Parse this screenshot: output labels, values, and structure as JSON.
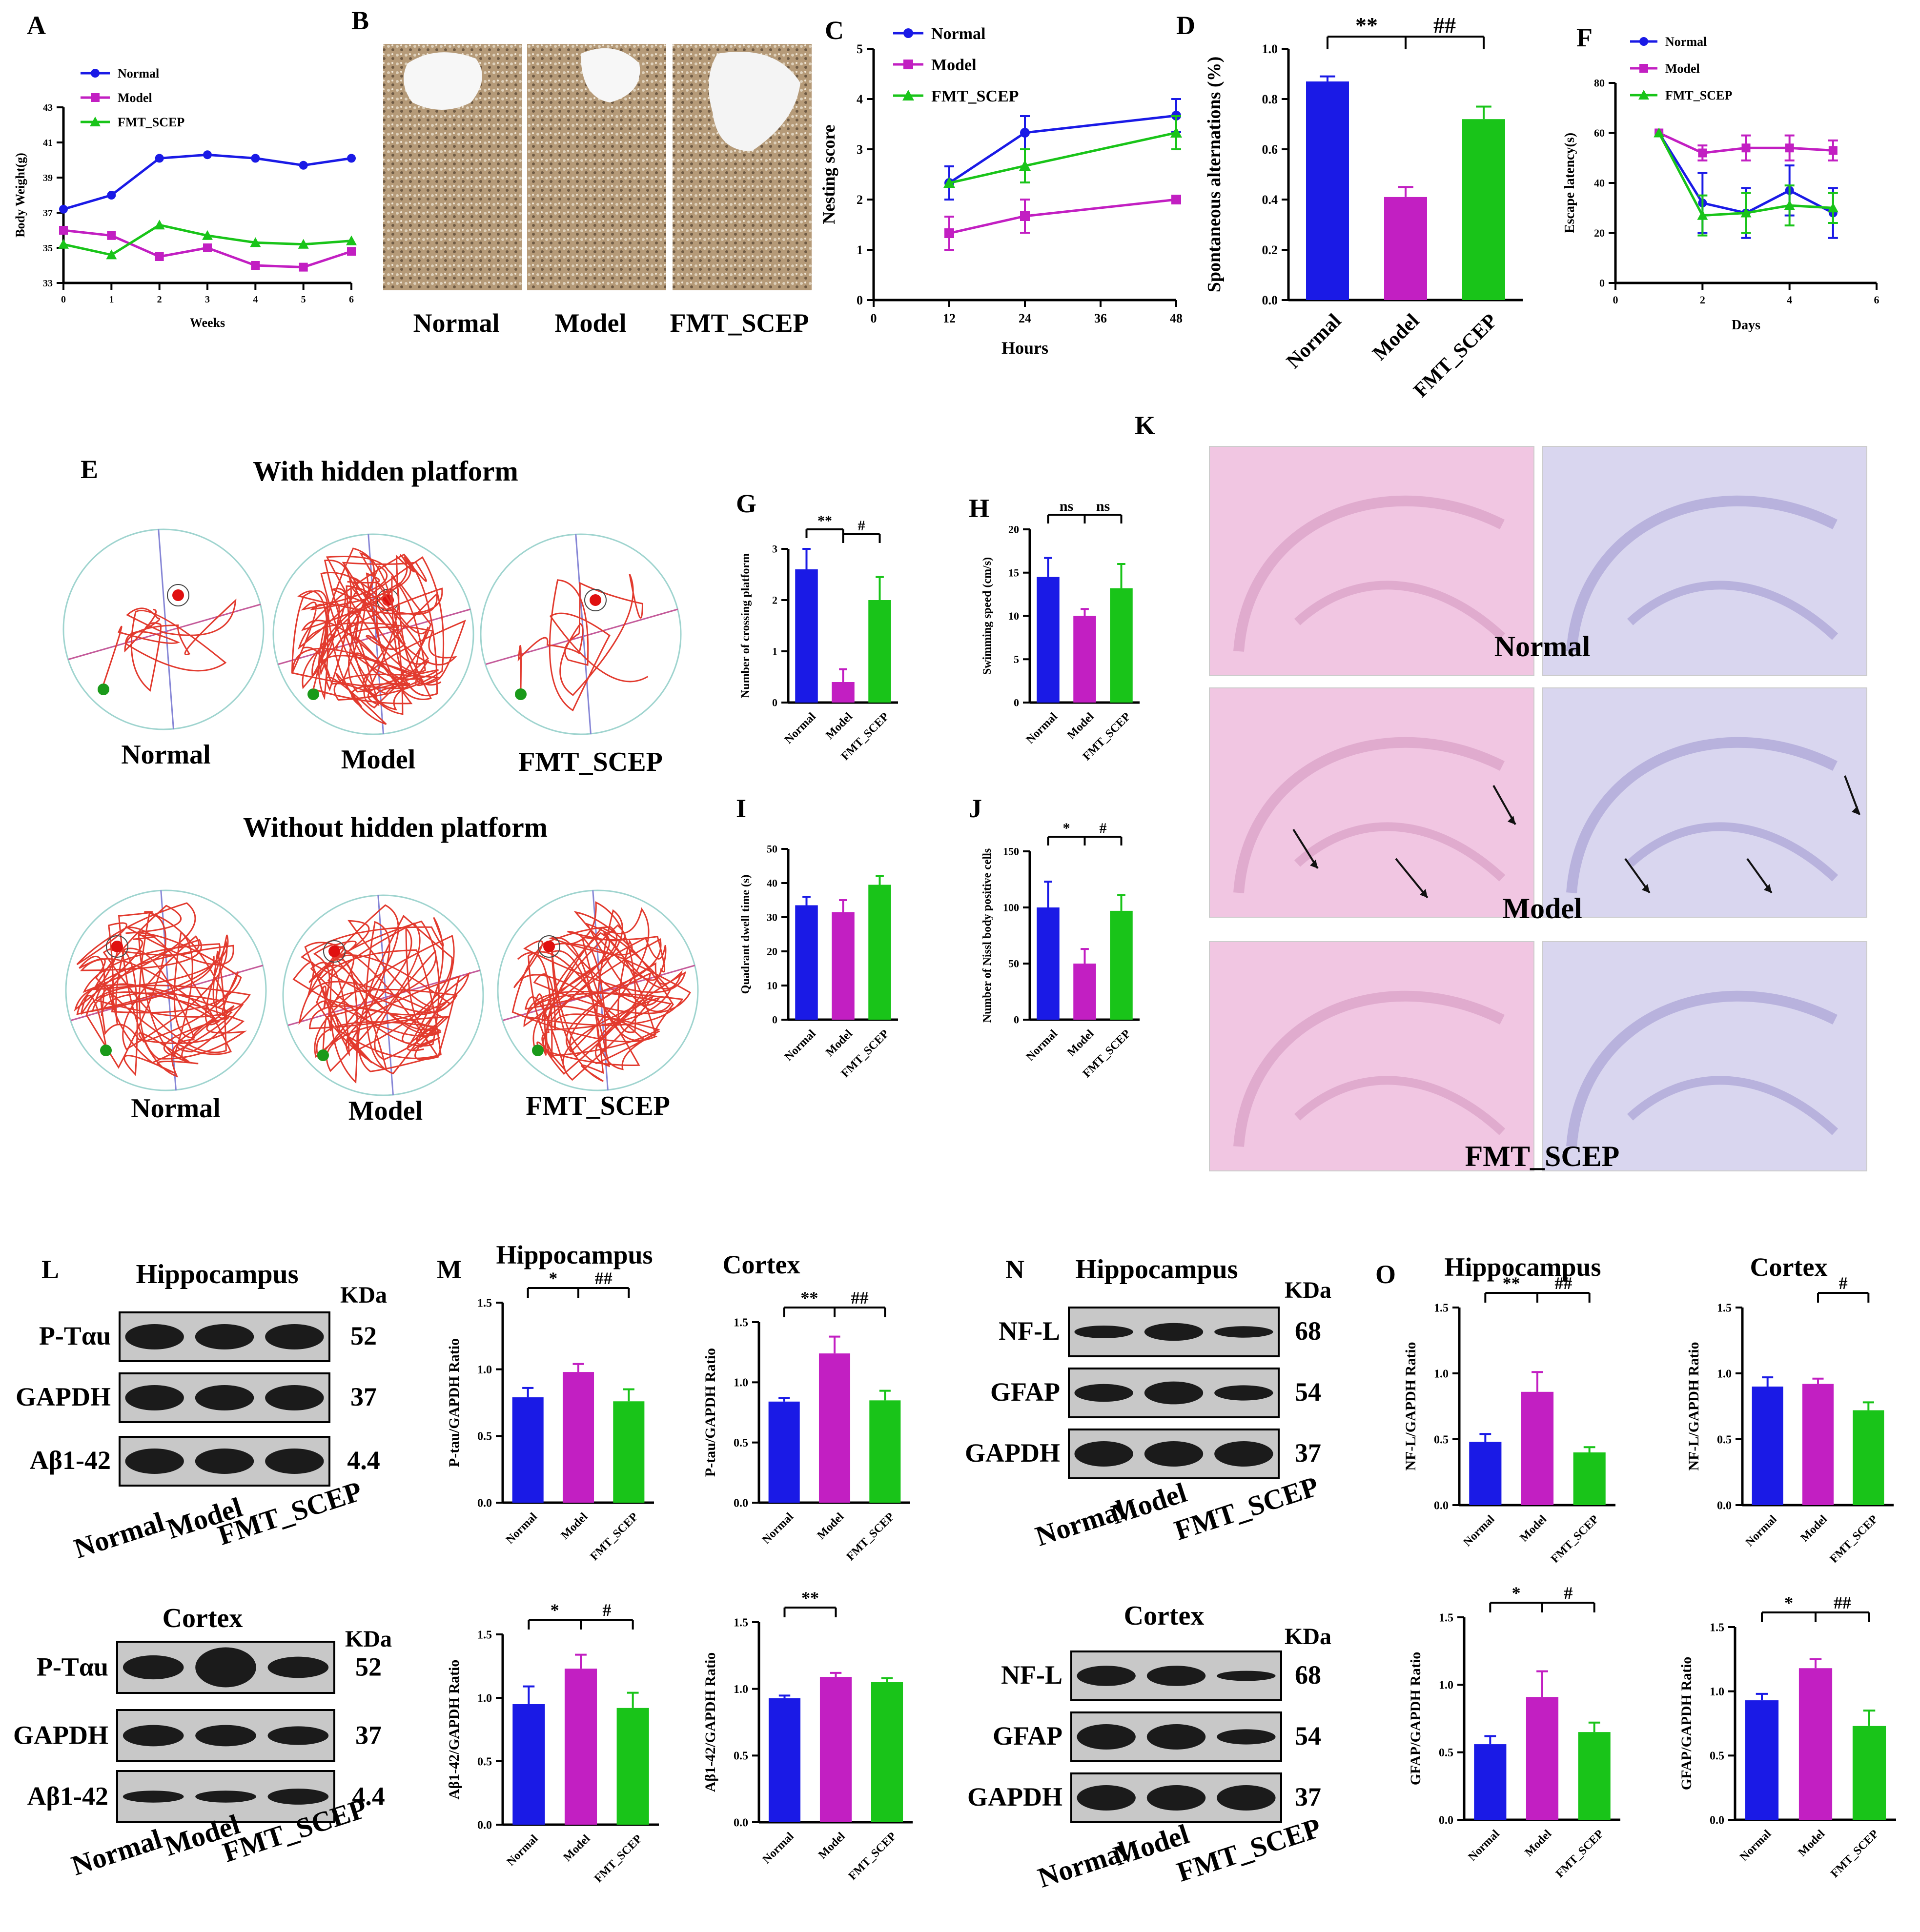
{
  "colors": {
    "normal": "#1a1ae6",
    "model": "#c21fc2",
    "fmt": "#19c419",
    "axis": "#000000",
    "he_bg": "#f1c6e2",
    "nissl_bg": "#d9d6ef",
    "gel_band": "#1b1b1b",
    "gel_bg": "#c8c8c8"
  },
  "group_labels": [
    "Normal",
    "Model",
    "FMT_SCEP"
  ],
  "panel_letters": [
    "A",
    "B",
    "C",
    "D",
    "E",
    "F",
    "G",
    "H",
    "I",
    "J",
    "K",
    "L",
    "M",
    "N",
    "O"
  ],
  "panel_B": {
    "labels": [
      "Normal",
      "Model",
      "FMT_SCEP"
    ]
  },
  "panel_E": {
    "title_with": "With hidden platform",
    "title_without": "Without hidden platform",
    "labels_with": [
      "Normal",
      "Model",
      "FMT_SCEP"
    ],
    "labels_without": [
      "Normal",
      "Model",
      "FMT_SCEP"
    ]
  },
  "panel_K": {
    "row_labels": [
      "Normal",
      "Model",
      "FMT_SCEP"
    ]
  },
  "panel_L": {
    "kda_header": "KDa",
    "blots": [
      {
        "title": "Hippocampus",
        "rows": [
          {
            "label": "P-Tαu",
            "kda": "52"
          },
          {
            "label": "GAPDH",
            "kda": "37"
          },
          {
            "label": "Aβ1-42",
            "kda": "4.4"
          }
        ],
        "lanes": [
          "Normal",
          "Model",
          "FMT_SCEP"
        ]
      },
      {
        "title": "Cortex",
        "rows": [
          {
            "label": "P-Tαu",
            "kda": "52"
          },
          {
            "label": "GAPDH",
            "kda": "37"
          },
          {
            "label": "Aβ1-42",
            "kda": "4.4"
          }
        ],
        "lanes": [
          "Normal",
          "Model",
          "FMT_SCEP"
        ]
      }
    ]
  },
  "panel_N": {
    "kda_header": "KDa",
    "blots": [
      {
        "title": "Hippocampus",
        "rows": [
          {
            "label": "NF-L",
            "kda": "68"
          },
          {
            "label": "GFAP",
            "kda": "54"
          },
          {
            "label": "GAPDH",
            "kda": "37"
          }
        ],
        "lanes": [
          "Normal",
          "Model",
          "FMT_SCEP"
        ]
      },
      {
        "title": "Cortex",
        "rows": [
          {
            "label": "NF-L",
            "kda": "68"
          },
          {
            "label": "GFAP",
            "kda": "54"
          },
          {
            "label": "GAPDH",
            "kda": "37"
          }
        ],
        "lanes": [
          "Normal",
          "Model",
          "FMT_SCEP"
        ]
      }
    ]
  },
  "chart_data": [
    {
      "id": "A",
      "type": "line",
      "xlabel": "Weeks",
      "ylabel": "Body Weight(g)",
      "x": [
        0,
        1,
        2,
        3,
        4,
        5,
        6
      ],
      "xticks": [
        0,
        1,
        2,
        3,
        4,
        5,
        6
      ],
      "ylim": [
        33,
        43
      ],
      "yticks": [
        33,
        35,
        37,
        39,
        41,
        43
      ],
      "series": [
        {
          "name": "Normal",
          "values": [
            37.2,
            38.0,
            40.1,
            40.3,
            40.1,
            39.7,
            40.1
          ]
        },
        {
          "name": "Model",
          "values": [
            36.0,
            35.7,
            34.5,
            35.0,
            34.0,
            33.9,
            34.8
          ]
        },
        {
          "name": "FMT_SCEP",
          "values": [
            35.2,
            34.6,
            36.3,
            35.7,
            35.3,
            35.2,
            35.4
          ]
        }
      ]
    },
    {
      "id": "C",
      "type": "line",
      "xlabel": "Hours",
      "ylabel": "Nesting score",
      "x": [
        12,
        24,
        48
      ],
      "xticks": [
        0,
        12,
        24,
        36,
        48
      ],
      "xlim": [
        0,
        48
      ],
      "ylim": [
        0,
        5
      ],
      "yticks": [
        0,
        1,
        2,
        3,
        4,
        5
      ],
      "series": [
        {
          "name": "Normal",
          "values": [
            2.33,
            3.33,
            3.67
          ],
          "err": [
            0.33,
            0.33,
            0.33
          ]
        },
        {
          "name": "Model",
          "values": [
            1.33,
            1.67,
            2.0
          ],
          "err": [
            0.33,
            0.33,
            0.0
          ]
        },
        {
          "name": "FMT_SCEP",
          "values": [
            2.33,
            2.67,
            3.33
          ],
          "err": [
            0.0,
            0.33,
            0.33
          ]
        }
      ]
    },
    {
      "id": "D",
      "type": "bar",
      "ylabel": "Spontaneous alternations (%)",
      "categories": [
        "Normal",
        "Model",
        "FMT_SCEP"
      ],
      "values": [
        0.87,
        0.41,
        0.72
      ],
      "err": [
        0.02,
        0.04,
        0.05
      ],
      "ylim": [
        0,
        1.0
      ],
      "yticks": [
        0.0,
        0.2,
        0.4,
        0.6,
        0.8,
        1.0
      ],
      "ytick_labels": [
        "0.0",
        "0.2",
        "0.4",
        "0.6",
        "0.8",
        "1.0"
      ],
      "sig": [
        {
          "from": 0,
          "to": 1,
          "text": "**"
        },
        {
          "from": 1,
          "to": 2,
          "text": "##"
        }
      ]
    },
    {
      "id": "F",
      "type": "line",
      "xlabel": "Days",
      "ylabel": "Escape latency(s)",
      "x": [
        1,
        2,
        3,
        4,
        5
      ],
      "xticks": [
        0,
        2,
        4,
        6
      ],
      "xlim": [
        0,
        6
      ],
      "ylim": [
        0,
        80
      ],
      "yticks": [
        0,
        20,
        40,
        60,
        80
      ],
      "series": [
        {
          "name": "Normal",
          "values": [
            60,
            32,
            28,
            37,
            28
          ],
          "err": [
            0,
            12,
            10,
            10,
            10
          ]
        },
        {
          "name": "Model",
          "values": [
            60,
            52,
            54,
            54,
            53
          ],
          "err": [
            0,
            3,
            5,
            5,
            4
          ]
        },
        {
          "name": "FMT_SCEP",
          "values": [
            60,
            27,
            28,
            31,
            30
          ],
          "err": [
            0,
            8,
            8,
            8,
            6
          ]
        }
      ]
    },
    {
      "id": "G",
      "type": "bar",
      "ylabel": "Number of crossing platform",
      "categories": [
        "Normal",
        "Model",
        "FMT_SCEP"
      ],
      "values": [
        2.6,
        0.4,
        2.0
      ],
      "err": [
        0.4,
        0.25,
        0.45
      ],
      "ylim": [
        0,
        3
      ],
      "yticks": [
        0,
        1,
        2,
        3
      ],
      "sig": [
        {
          "from": 0,
          "to": 1,
          "text": "**"
        },
        {
          "from": 1,
          "to": 2,
          "text": "#"
        }
      ]
    },
    {
      "id": "H",
      "type": "bar",
      "ylabel": "Swimming speed (cm/s)",
      "categories": [
        "Normal",
        "Model",
        "FMT_SCEP"
      ],
      "values": [
        14.5,
        10.0,
        13.2
      ],
      "err": [
        2.2,
        0.8,
        2.8
      ],
      "ylim": [
        0,
        20
      ],
      "yticks": [
        0,
        5,
        10,
        15,
        20
      ],
      "sig": [
        {
          "from": 0,
          "to": 1,
          "text": "ns"
        },
        {
          "from": 1,
          "to": 2,
          "text": "ns"
        }
      ]
    },
    {
      "id": "I",
      "type": "bar",
      "ylabel": "Quadrant dwell time (s)",
      "categories": [
        "Normal",
        "Model",
        "FMT_SCEP"
      ],
      "values": [
        33.5,
        31.5,
        39.5
      ],
      "err": [
        2.5,
        3.5,
        2.5
      ],
      "ylim": [
        0,
        50
      ],
      "yticks": [
        0,
        10,
        20,
        30,
        40,
        50
      ],
      "sig": []
    },
    {
      "id": "J",
      "type": "bar",
      "ylabel": "Number of Nissl body positive cells",
      "categories": [
        "Normal",
        "Model",
        "FMT_SCEP"
      ],
      "values": [
        100,
        50,
        97
      ],
      "err": [
        23,
        13,
        14
      ],
      "ylim": [
        0,
        150
      ],
      "yticks": [
        0,
        50,
        100,
        150
      ],
      "sig": [
        {
          "from": 0,
          "to": 1,
          "text": "*"
        },
        {
          "from": 1,
          "to": 2,
          "text": "#"
        }
      ]
    },
    {
      "id": "M1",
      "type": "bar",
      "title": "Hippocampus",
      "ylabel": "P-tau/GAPDH Ratio",
      "categories": [
        "Normal",
        "Model",
        "FMT_SCEP"
      ],
      "values": [
        0.79,
        0.98,
        0.76
      ],
      "err": [
        0.07,
        0.06,
        0.09
      ],
      "ylim": [
        0,
        1.5
      ],
      "yticks": [
        0.0,
        0.5,
        1.0,
        1.5
      ],
      "ytick_labels": [
        "0.0",
        "0.5",
        "1.0",
        "1.5"
      ],
      "sig": [
        {
          "from": 0,
          "to": 1,
          "text": "*"
        },
        {
          "from": 1,
          "to": 2,
          "text": "##"
        }
      ]
    },
    {
      "id": "M2",
      "type": "bar",
      "title": "Cortex",
      "ylabel": "P-tau/GAPDH Ratio",
      "categories": [
        "Normal",
        "Model",
        "FMT_SCEP"
      ],
      "values": [
        0.84,
        1.24,
        0.85
      ],
      "err": [
        0.03,
        0.14,
        0.08
      ],
      "ylim": [
        0,
        1.5
      ],
      "yticks": [
        0.0,
        0.5,
        1.0,
        1.5
      ],
      "ytick_labels": [
        "0.0",
        "0.5",
        "1.0",
        "1.5"
      ],
      "sig": [
        {
          "from": 0,
          "to": 1,
          "text": "**"
        },
        {
          "from": 1,
          "to": 2,
          "text": "##"
        }
      ]
    },
    {
      "id": "M3",
      "type": "bar",
      "ylabel": "Aβ1-42/GAPDH Ratio",
      "categories": [
        "Normal",
        "Model",
        "FMT_SCEP"
      ],
      "values": [
        0.95,
        1.23,
        0.92
      ],
      "err": [
        0.14,
        0.11,
        0.12
      ],
      "ylim": [
        0,
        1.5
      ],
      "yticks": [
        0.0,
        0.5,
        1.0,
        1.5
      ],
      "ytick_labels": [
        "0.0",
        "0.5",
        "1.0",
        "1.5"
      ],
      "sig": [
        {
          "from": 0,
          "to": 1,
          "text": "*"
        },
        {
          "from": 1,
          "to": 2,
          "text": "#"
        }
      ]
    },
    {
      "id": "M4",
      "type": "bar",
      "ylabel": "Aβ1-42/GAPDH Ratio",
      "categories": [
        "Normal",
        "Model",
        "FMT_SCEP"
      ],
      "values": [
        0.93,
        1.09,
        1.05
      ],
      "err": [
        0.02,
        0.03,
        0.03
      ],
      "ylim": [
        0,
        1.5
      ],
      "yticks": [
        0.0,
        0.5,
        1.0,
        1.5
      ],
      "ytick_labels": [
        "0.0",
        "0.5",
        "1.0",
        "1.5"
      ],
      "sig": [
        {
          "from": 0,
          "to": 1,
          "text": "**"
        }
      ]
    },
    {
      "id": "O1",
      "type": "bar",
      "title": "Hippocampus",
      "ylabel": "NF-L/GAPDH Ratio",
      "categories": [
        "Normal",
        "Model",
        "FMT_SCEP"
      ],
      "values": [
        0.48,
        0.86,
        0.4
      ],
      "err": [
        0.06,
        0.15,
        0.04
      ],
      "ylim": [
        0,
        1.5
      ],
      "yticks": [
        0.0,
        0.5,
        1.0,
        1.5
      ],
      "ytick_labels": [
        "0.0",
        "0.5",
        "1.0",
        "1.5"
      ],
      "sig": [
        {
          "from": 0,
          "to": 1,
          "text": "**"
        },
        {
          "from": 1,
          "to": 2,
          "text": "##"
        }
      ]
    },
    {
      "id": "O2",
      "type": "bar",
      "title": "Cortex",
      "ylabel": "NF-L/GAPDH Ratio",
      "categories": [
        "Normal",
        "Model",
        "FMT_SCEP"
      ],
      "values": [
        0.9,
        0.92,
        0.72
      ],
      "err": [
        0.07,
        0.04,
        0.06
      ],
      "ylim": [
        0,
        1.5
      ],
      "yticks": [
        0.0,
        0.5,
        1.0,
        1.5
      ],
      "ytick_labels": [
        "0.0",
        "0.5",
        "1.0",
        "1.5"
      ],
      "sig": [
        {
          "from": 1,
          "to": 2,
          "text": "#"
        }
      ]
    },
    {
      "id": "O3",
      "type": "bar",
      "ylabel": "GFAP/GAPDH Ratio",
      "categories": [
        "Normal",
        "Model",
        "FMT_SCEP"
      ],
      "values": [
        0.56,
        0.91,
        0.65
      ],
      "err": [
        0.06,
        0.19,
        0.07
      ],
      "ylim": [
        0,
        1.5
      ],
      "yticks": [
        0.0,
        0.5,
        1.0,
        1.5
      ],
      "ytick_labels": [
        "0.0",
        "0.5",
        "1.0",
        "1.5"
      ],
      "sig": [
        {
          "from": 0,
          "to": 1,
          "text": "*"
        },
        {
          "from": 1,
          "to": 2,
          "text": "#"
        }
      ]
    },
    {
      "id": "O4",
      "type": "bar",
      "ylabel": "GFAP/GAPDH Ratio",
      "categories": [
        "Normal",
        "Model",
        "FMT_SCEP"
      ],
      "values": [
        0.93,
        1.18,
        0.73
      ],
      "err": [
        0.05,
        0.07,
        0.12
      ],
      "ylim": [
        0,
        1.5
      ],
      "yticks": [
        0.0,
        0.5,
        1.0,
        1.5
      ],
      "ytick_labels": [
        "0.0",
        "0.5",
        "1.0",
        "1.5"
      ],
      "sig": [
        {
          "from": 0,
          "to": 1,
          "text": "*"
        },
        {
          "from": 1,
          "to": 2,
          "text": "##"
        }
      ]
    }
  ]
}
